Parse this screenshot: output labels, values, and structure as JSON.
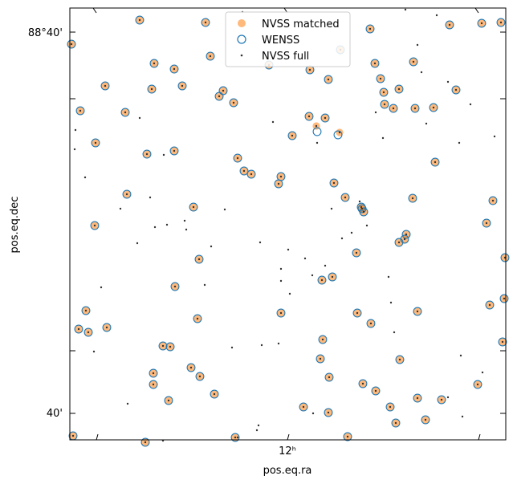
{
  "chart_data": {
    "type": "scatter",
    "title": "",
    "xlabel": "pos.eq.ra",
    "ylabel": "pos.eq.dec",
    "projection": "wcs-polar",
    "x_tick_labels": [
      "12ʰ"
    ],
    "y_tick_labels": [
      "88°40'",
      "40'"
    ],
    "legend": {
      "placement": "top-center",
      "entries": [
        "NVSS matched",
        "WENSS",
        "NVSS full"
      ]
    },
    "grid": false,
    "colors": {
      "nvss_matched": "#ff7f0e",
      "wenss": "#1f77b4",
      "nvss_full": "#333333"
    },
    "series": [
      {
        "name": "NVSS matched",
        "marker": "filled-circle",
        "points": [
          [
            89,
            55
          ],
          [
            174,
            25
          ],
          [
            256,
            28
          ],
          [
            461,
            36
          ],
          [
            560,
            31
          ],
          [
            600,
            29
          ],
          [
            624,
            28
          ],
          [
            424,
            62
          ],
          [
            335,
            81
          ],
          [
            262,
            70
          ],
          [
            192,
            79
          ],
          [
            217,
            86
          ],
          [
            131,
            107
          ],
          [
            189,
            111
          ],
          [
            227,
            107
          ],
          [
            386,
            87
          ],
          [
            409,
            99
          ],
          [
            467,
            79
          ],
          [
            515,
            77
          ],
          [
            474,
            98
          ],
          [
            497,
            111
          ],
          [
            478,
            115
          ],
          [
            273,
            120
          ],
          [
            278,
            113
          ],
          [
            291,
            128
          ],
          [
            100,
            138
          ],
          [
            156,
            140
          ],
          [
            479,
            130
          ],
          [
            490,
            135
          ],
          [
            517,
            135
          ],
          [
            540,
            134
          ],
          [
            568,
            112
          ],
          [
            385,
            145
          ],
          [
            405,
            147
          ],
          [
            394,
            157
          ],
          [
            423,
            165
          ],
          [
            119,
            178
          ],
          [
            364,
            169
          ],
          [
            183,
            192
          ],
          [
            217,
            188
          ],
          [
            542,
            202
          ],
          [
            296,
            197
          ],
          [
            304,
            213
          ],
          [
            313,
            217
          ],
          [
            350,
            220
          ],
          [
            347,
            229
          ],
          [
            416,
            228
          ],
          [
            430,
            246
          ],
          [
            450,
            258
          ],
          [
            451,
            260
          ],
          [
            453,
            264
          ],
          [
            158,
            242
          ],
          [
            241,
            258
          ],
          [
            514,
            247
          ],
          [
            614,
            250
          ],
          [
            606,
            278
          ],
          [
            118,
            281
          ],
          [
            506,
            292
          ],
          [
            504,
            298
          ],
          [
            497,
            302
          ],
          [
            444,
            315
          ],
          [
            248,
            323
          ],
          [
            629,
            321
          ],
          [
            414,
            345
          ],
          [
            401,
            349
          ],
          [
            218,
            357
          ],
          [
            350,
            390
          ],
          [
            445,
            390
          ],
          [
            462,
            403
          ],
          [
            107,
            387
          ],
          [
            133,
            408
          ],
          [
            520,
            388
          ],
          [
            610,
            380
          ],
          [
            628,
            372
          ],
          [
            98,
            410
          ],
          [
            110,
            414
          ],
          [
            246,
            397
          ],
          [
            402,
            423
          ],
          [
            626,
            426
          ],
          [
            203,
            431
          ],
          [
            212,
            432
          ],
          [
            399,
            447
          ],
          [
            498,
            448
          ],
          [
            238,
            458
          ],
          [
            191,
            465
          ],
          [
            249,
            469
          ],
          [
            410,
            470
          ],
          [
            191,
            479
          ],
          [
            452,
            478
          ],
          [
            468,
            487
          ],
          [
            595,
            479
          ],
          [
            267,
            491
          ],
          [
            210,
            499
          ],
          [
            520,
            496
          ],
          [
            550,
            498
          ],
          [
            378,
            507
          ],
          [
            486,
            507
          ],
          [
            409,
            514
          ],
          [
            493,
            527
          ],
          [
            530,
            523
          ],
          [
            91,
            543
          ],
          [
            181,
            551
          ],
          [
            293,
            545
          ],
          [
            433,
            544
          ]
        ]
      },
      {
        "name": "WENSS",
        "marker": "open-circle",
        "points": [
          [
            89,
            55
          ],
          [
            174,
            25
          ],
          [
            256,
            28
          ],
          [
            461,
            36
          ],
          [
            560,
            31
          ],
          [
            600,
            29
          ],
          [
            624,
            28
          ],
          [
            424,
            62
          ],
          [
            335,
            81
          ],
          [
            262,
            70
          ],
          [
            192,
            79
          ],
          [
            217,
            86
          ],
          [
            131,
            107
          ],
          [
            189,
            111
          ],
          [
            227,
            107
          ],
          [
            386,
            87
          ],
          [
            409,
            99
          ],
          [
            467,
            79
          ],
          [
            515,
            77
          ],
          [
            474,
            98
          ],
          [
            497,
            111
          ],
          [
            478,
            115
          ],
          [
            273,
            120
          ],
          [
            278,
            113
          ],
          [
            291,
            128
          ],
          [
            100,
            138
          ],
          [
            156,
            140
          ],
          [
            479,
            130
          ],
          [
            490,
            135
          ],
          [
            517,
            135
          ],
          [
            540,
            134
          ],
          [
            568,
            112
          ],
          [
            385,
            145
          ],
          [
            405,
            147
          ],
          [
            395,
            164
          ],
          [
            421,
            168
          ],
          [
            119,
            178
          ],
          [
            364,
            169
          ],
          [
            183,
            192
          ],
          [
            217,
            188
          ],
          [
            542,
            202
          ],
          [
            296,
            197
          ],
          [
            304,
            213
          ],
          [
            313,
            217
          ],
          [
            350,
            220
          ],
          [
            347,
            229
          ],
          [
            416,
            228
          ],
          [
            430,
            246
          ],
          [
            450,
            258
          ],
          [
            451,
            260
          ],
          [
            453,
            264
          ],
          [
            158,
            242
          ],
          [
            241,
            258
          ],
          [
            514,
            247
          ],
          [
            614,
            250
          ],
          [
            606,
            278
          ],
          [
            118,
            281
          ],
          [
            506,
            292
          ],
          [
            504,
            298
          ],
          [
            497,
            302
          ],
          [
            444,
            315
          ],
          [
            248,
            323
          ],
          [
            629,
            321
          ],
          [
            414,
            345
          ],
          [
            401,
            349
          ],
          [
            218,
            357
          ],
          [
            350,
            390
          ],
          [
            445,
            390
          ],
          [
            462,
            403
          ],
          [
            107,
            387
          ],
          [
            133,
            408
          ],
          [
            520,
            388
          ],
          [
            610,
            380
          ],
          [
            628,
            372
          ],
          [
            98,
            410
          ],
          [
            110,
            414
          ],
          [
            246,
            397
          ],
          [
            402,
            423
          ],
          [
            626,
            426
          ],
          [
            203,
            431
          ],
          [
            212,
            432
          ],
          [
            399,
            447
          ],
          [
            498,
            448
          ],
          [
            238,
            458
          ],
          [
            191,
            465
          ],
          [
            249,
            469
          ],
          [
            410,
            470
          ],
          [
            191,
            479
          ],
          [
            452,
            478
          ],
          [
            468,
            487
          ],
          [
            595,
            479
          ],
          [
            267,
            491
          ],
          [
            210,
            499
          ],
          [
            520,
            496
          ],
          [
            550,
            498
          ],
          [
            378,
            507
          ],
          [
            486,
            507
          ],
          [
            409,
            514
          ],
          [
            493,
            527
          ],
          [
            530,
            523
          ],
          [
            91,
            543
          ],
          [
            181,
            551
          ],
          [
            293,
            545
          ],
          [
            433,
            544
          ]
        ]
      },
      {
        "name": "NVSS full",
        "marker": "dot",
        "points": [
          [
            94,
            162
          ],
          [
            93,
            186
          ],
          [
            106,
            221
          ],
          [
            117,
            438
          ],
          [
            126,
            358
          ],
          [
            150,
            260
          ],
          [
            159,
            503
          ],
          [
            171,
            303
          ],
          [
            174,
            147
          ],
          [
            187,
            246
          ],
          [
            193,
            283
          ],
          [
            204,
            193
          ],
          [
            203,
            549
          ],
          [
            208,
            280
          ],
          [
            230,
            275
          ],
          [
            232,
            286
          ],
          [
            255,
            355
          ],
          [
            263,
            307
          ],
          [
            280,
            261
          ],
          [
            289,
            433
          ],
          [
            296,
            545
          ],
          [
            302,
            15
          ],
          [
            320,
            536
          ],
          [
            322,
            530
          ],
          [
            324,
            302
          ],
          [
            326,
            430
          ],
          [
            340,
            152
          ],
          [
            347,
            428
          ],
          [
            350,
            335
          ],
          [
            350,
            350
          ],
          [
            359,
            311
          ],
          [
            361,
            366
          ],
          [
            380,
            322
          ],
          [
            389,
            343
          ],
          [
            390,
            515
          ],
          [
            395,
            178
          ],
          [
            405,
            331
          ],
          [
            413,
            260
          ],
          [
            426,
            297
          ],
          [
            438,
            290
          ],
          [
            448,
            251
          ],
          [
            457,
            281
          ],
          [
            468,
            140
          ],
          [
            477,
            172
          ],
          [
            484,
            345
          ],
          [
            487,
            377
          ],
          [
            491,
            414
          ],
          [
            505,
            12
          ],
          [
            520,
            56
          ],
          [
            525,
            90
          ],
          [
            531,
            154
          ],
          [
            544,
            19
          ],
          [
            558,
            495
          ],
          [
            558,
            102
          ],
          [
            572,
            178
          ],
          [
            574,
            443
          ],
          [
            576,
            519
          ],
          [
            586,
            130
          ],
          [
            601,
            464
          ],
          [
            616,
            170
          ]
        ]
      }
    ]
  }
}
